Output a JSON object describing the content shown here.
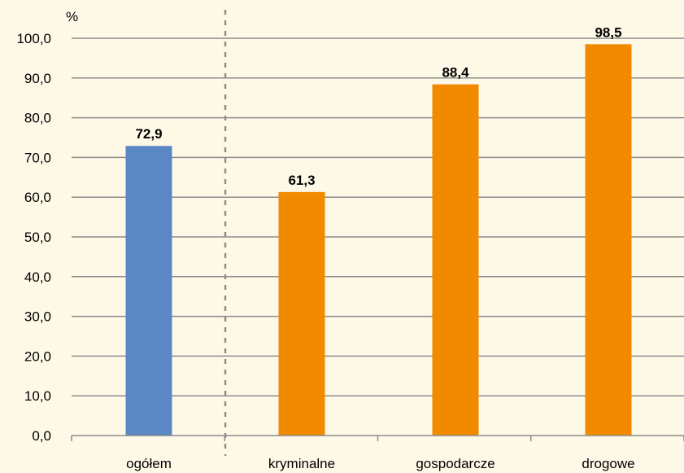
{
  "chart_data": {
    "type": "bar",
    "ylabel": "%",
    "ylim": [
      0,
      100
    ],
    "yticks": [
      "0,0",
      "10,0",
      "20,0",
      "30,0",
      "40,0",
      "50,0",
      "60,0",
      "70,0",
      "80,0",
      "90,0",
      "100,0"
    ],
    "grid": true,
    "categories": [
      "ogółem",
      "kryminalne",
      "gospodarcze",
      "drogowe"
    ],
    "values": [
      72.9,
      61.3,
      88.4,
      98.5
    ],
    "value_labels": [
      "72,9",
      "61,3",
      "88,4",
      "98,5"
    ],
    "colors": [
      "#5b87c5",
      "#f28a00",
      "#f28a00",
      "#f28a00"
    ],
    "separator_after_category": "ogółem",
    "background": "#fef9e7",
    "grid_color": "#8c8c8c"
  }
}
